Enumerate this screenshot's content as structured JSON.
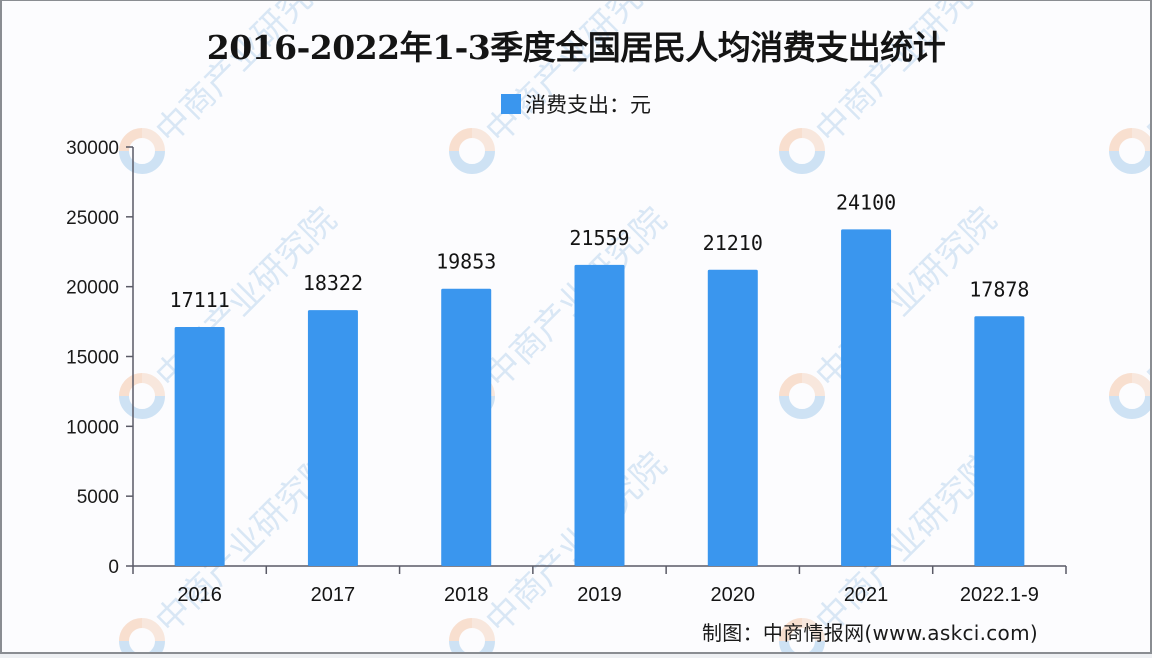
{
  "title": "2016-2022年1-3季度全国居民人均消费支出统计",
  "legend": {
    "label": "消费支出：元",
    "color": "#3a96ee"
  },
  "source": "制图：中商情报网(www.askci.com)",
  "watermark": "中商产业研究院",
  "colors": {
    "bar": "#3a96ee",
    "axis": "#5a5a66",
    "text": "#141414"
  },
  "chart_data": {
    "type": "bar",
    "title": "2016-2022年1-3季度全国居民人均消费支出统计",
    "categories": [
      "2016",
      "2017",
      "2018",
      "2019",
      "2020",
      "2021",
      "2022.1-9"
    ],
    "series": [
      {
        "name": "消费支出：元",
        "values": [
          17111,
          18322,
          19853,
          21559,
          21210,
          24100,
          17878
        ]
      }
    ],
    "xlabel": "",
    "ylabel": "",
    "ylim": [
      0,
      30000
    ],
    "yticks": [
      0,
      5000,
      10000,
      15000,
      20000,
      25000,
      30000
    ],
    "grid": false,
    "legend_position": "top",
    "data_labels": true
  }
}
